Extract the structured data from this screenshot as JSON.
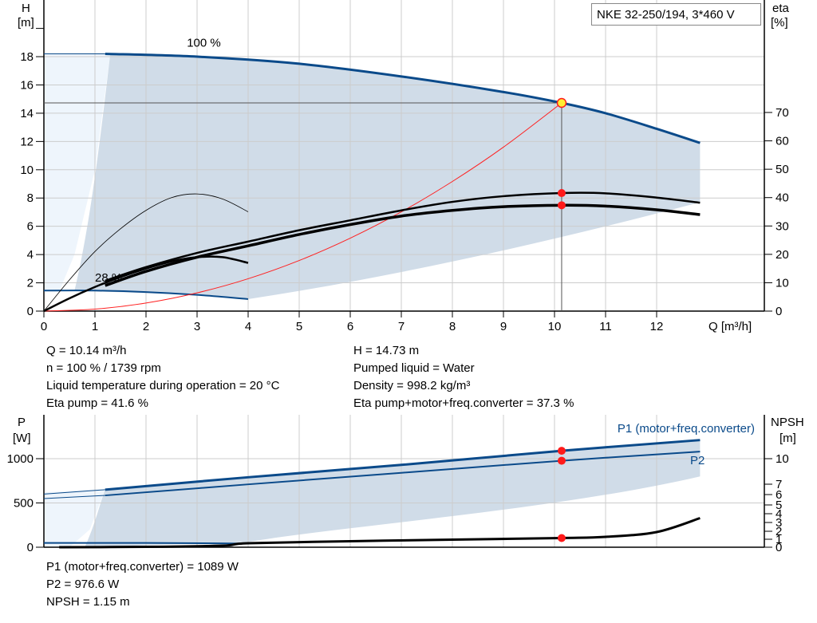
{
  "chart_data": [
    {
      "type": "line",
      "title": "NKE 32-250/194, 3*460 V",
      "xlabel": "Q [m³/h]",
      "ylabel": "H [m]",
      "y2label": "eta [%]",
      "xlabel_short": "Q [m³/h]",
      "ylabel_name": "H",
      "ylabel_unit": "[m]",
      "y2label_name": "eta",
      "y2label_unit": "[%]",
      "xlim": [
        0,
        14
      ],
      "ylim": [
        0,
        20
      ],
      "y2lim": [
        0,
        80
      ],
      "xticks": [
        0,
        1,
        2,
        3,
        4,
        5,
        6,
        7,
        8,
        9,
        10,
        11,
        12
      ],
      "yticks": [
        0,
        2,
        4,
        6,
        8,
        10,
        12,
        14,
        16,
        18
      ],
      "y2ticks": [
        0,
        10,
        20,
        30,
        40,
        50,
        60,
        70
      ],
      "grid": true,
      "annotations": [
        {
          "text": "100 %",
          "x": 2.8,
          "y": 18.7
        },
        {
          "text": "28 %",
          "x": 1.0,
          "y": 2.1
        }
      ],
      "series": [
        {
          "key": "H100",
          "axis": "H",
          "color": "#0a4a8a",
          "width": 3,
          "points": [
            [
              1.2,
              18.2
            ],
            [
              3,
              18.0
            ],
            [
              5,
              17.5
            ],
            [
              7,
              16.6
            ],
            [
              9,
              15.5
            ],
            [
              10.14,
              14.73
            ],
            [
              11,
              14.0
            ],
            [
              12,
              12.9
            ],
            [
              12.85,
              11.9
            ]
          ]
        },
        {
          "key": "H100_ext",
          "axis": "H",
          "color": "#0a4a8a",
          "width": 1,
          "points": [
            [
              0,
              18.2
            ],
            [
              1.2,
              18.2
            ]
          ]
        },
        {
          "key": "H28",
          "axis": "H",
          "color": "#0a4a8a",
          "width": 2,
          "points": [
            [
              0,
              1.45
            ],
            [
              1,
              1.45
            ],
            [
              2,
              1.35
            ],
            [
              3,
              1.15
            ],
            [
              4,
              0.85
            ]
          ]
        },
        {
          "key": "system",
          "axis": "H",
          "color": "#ff2020",
          "width": 1,
          "points": [
            [
              0,
              0
            ],
            [
              1,
              0.14
            ],
            [
              2,
              0.57
            ],
            [
              3,
              1.29
            ],
            [
              4,
              2.29
            ],
            [
              5,
              3.58
            ],
            [
              6,
              5.16
            ],
            [
              7,
              7.02
            ],
            [
              8,
              9.17
            ],
            [
              9,
              11.6
            ],
            [
              10.14,
              14.73
            ]
          ]
        },
        {
          "key": "eta_pump",
          "axis": "eta",
          "color": "#000",
          "width": 2.5,
          "points": [
            [
              1.2,
              10.7
            ],
            [
              2,
              15.5
            ],
            [
              3,
              20.5
            ],
            [
              4,
              24.5
            ],
            [
              5,
              28.5
            ],
            [
              6,
              32
            ],
            [
              7,
              35.5
            ],
            [
              8,
              38.5
            ],
            [
              9,
              40.5
            ],
            [
              10.14,
              41.6
            ],
            [
              11,
              41.5
            ],
            [
              12,
              40
            ],
            [
              12.85,
              38.2
            ]
          ]
        },
        {
          "key": "eta_total",
          "axis": "eta",
          "color": "#000",
          "width": 3.5,
          "points": [
            [
              1.2,
              9
            ],
            [
              2,
              14
            ],
            [
              3,
              19
            ],
            [
              4,
              23
            ],
            [
              5,
              27
            ],
            [
              6,
              30.5
            ],
            [
              7,
              33.5
            ],
            [
              8,
              35.5
            ],
            [
              9,
              36.8
            ],
            [
              10.14,
              37.3
            ],
            [
              11,
              37
            ],
            [
              12,
              35.7
            ],
            [
              12.85,
              34
            ]
          ]
        },
        {
          "key": "eta_pump_28",
          "axis": "eta",
          "color": "#000",
          "width": 0.8,
          "points": [
            [
              0,
              0
            ],
            [
              0.5,
              11
            ],
            [
              1,
              21
            ],
            [
              1.5,
              29
            ],
            [
              2,
              35.5
            ],
            [
              2.5,
              40
            ],
            [
              3,
              41.3
            ],
            [
              3.5,
              39.5
            ],
            [
              4,
              35
            ]
          ]
        },
        {
          "key": "eta_total_28",
          "axis": "eta",
          "color": "#000",
          "width": 2.5,
          "points": [
            [
              0,
              0
            ],
            [
              0.5,
              4.5
            ],
            [
              1,
              8.5
            ],
            [
              1.5,
              12
            ],
            [
              2,
              15
            ],
            [
              2.5,
              17.5
            ],
            [
              3,
              19
            ],
            [
              3.5,
              19
            ],
            [
              4,
              17
            ]
          ]
        }
      ],
      "operating_point": {
        "Q": 10.14,
        "H": 14.73,
        "eta_pump": 41.6,
        "eta_total": 37.3
      }
    },
    {
      "type": "line",
      "xlim": [
        0,
        14
      ],
      "ylim": [
        0,
        1400
      ],
      "ylabel_name": "P",
      "ylabel_unit": "[W]",
      "y2label_name": "NPSH",
      "y2label_unit": "[m]",
      "yticks": [
        0,
        500,
        1000
      ],
      "y2ticks": [
        0,
        1,
        2,
        3,
        4,
        5,
        6,
        7,
        10
      ],
      "grid": true,
      "legend": [
        {
          "text": "P1 (motor+freq.converter)",
          "color": "#0a4a8a"
        },
        {
          "text": "P2",
          "color": "#0a4a8a"
        }
      ],
      "series": [
        {
          "key": "P1",
          "axis": "P",
          "color": "#0a4a8a",
          "width": 3,
          "points": [
            [
              1.2,
              650
            ],
            [
              4,
              790
            ],
            [
              7,
              930
            ],
            [
              10.14,
              1089
            ],
            [
              12.85,
              1210
            ]
          ]
        },
        {
          "key": "P2",
          "axis": "P",
          "color": "#0a4a8a",
          "width": 2,
          "points": [
            [
              1.2,
              585
            ],
            [
              4,
              710
            ],
            [
              7,
              840
            ],
            [
              10.14,
              976.6
            ],
            [
              12.85,
              1080
            ]
          ]
        },
        {
          "key": "P1_ext",
          "axis": "P",
          "color": "#0a4a8a",
          "width": 1,
          "points": [
            [
              0,
              600
            ],
            [
              1.2,
              650
            ]
          ]
        },
        {
          "key": "P2_ext",
          "axis": "P",
          "color": "#0a4a8a",
          "width": 1,
          "points": [
            [
              0,
              550
            ],
            [
              1.2,
              585
            ]
          ]
        },
        {
          "key": "P1_28",
          "axis": "P",
          "color": "#0a4a8a",
          "width": 2,
          "points": [
            [
              0,
              48
            ],
            [
              2,
              48
            ],
            [
              4,
              42
            ]
          ]
        },
        {
          "key": "NPSH",
          "axis": "NPSH",
          "color": "#000",
          "width": 3,
          "points": [
            [
              0.3,
              0
            ],
            [
              2,
              0.05
            ],
            [
              3.5,
              0.2
            ],
            [
              4,
              0.5
            ],
            [
              6,
              0.75
            ],
            [
              8,
              0.95
            ],
            [
              10.14,
              1.15
            ],
            [
              11,
              1.3
            ],
            [
              12,
              1.9
            ],
            [
              12.85,
              3.5
            ]
          ]
        }
      ],
      "operating_point": {
        "P1": 1089,
        "P2": 976.6,
        "NPSH": 1.15
      }
    }
  ],
  "info_top": {
    "left": [
      "Q = 10.14 m³/h",
      "n = 100 % / 1739 rpm",
      "Liquid temperature during operation = 20 °C",
      "Eta pump = 41.6 %"
    ],
    "right": [
      "H = 14.73 m",
      "Pumped liquid = Water",
      "Density = 998.2 kg/m³",
      "Eta pump+motor+freq.converter = 37.3 %"
    ]
  },
  "info_bottom": [
    "P1 (motor+freq.converter) = 1089 W",
    "P2 = 976.6 W",
    "NPSH = 1.15 m"
  ],
  "colors": {
    "curve": "#0a4a8a",
    "region": "#d0dce8",
    "region_light": "#eef5fc",
    "point": "#ff1a1a",
    "op_marker": "#ffee33"
  }
}
